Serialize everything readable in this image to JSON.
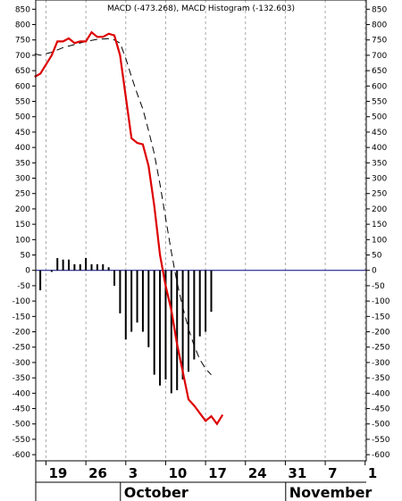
{
  "chart_data": {
    "type": "line",
    "title": "MACD (-473.268), MACD Histogram (-132.603)",
    "ylim": [
      -620,
      880
    ],
    "y_ticks": [
      -600,
      -550,
      -500,
      -450,
      -400,
      -350,
      -300,
      -250,
      -200,
      -150,
      -100,
      -50,
      0,
      50,
      100,
      150,
      200,
      250,
      300,
      350,
      400,
      450,
      500,
      550,
      600,
      650,
      700,
      750,
      800,
      850
    ],
    "x_ticks": [
      {
        "label": "19",
        "day": 19
      },
      {
        "label": "26",
        "day": 26
      },
      {
        "label": "3",
        "day": 33
      },
      {
        "label": "10",
        "day": 40
      },
      {
        "label": "17",
        "day": 47
      },
      {
        "label": "24",
        "day": 54
      },
      {
        "label": "31",
        "day": 61
      },
      {
        "label": "7",
        "day": 68
      },
      {
        "label": "1",
        "day": 75
      }
    ],
    "month_labels": [
      {
        "label": "October",
        "day": 33
      },
      {
        "label": "November",
        "day": 62
      }
    ],
    "xlim": [
      17.2,
      75.2
    ],
    "grid_x": true,
    "zero_line": true,
    "series": [
      {
        "type": "line",
        "color": "#dd0000",
        "points": [
          [
            17,
            630
          ],
          [
            18,
            640
          ],
          [
            20,
            700
          ],
          [
            21,
            745
          ],
          [
            22,
            745
          ],
          [
            23,
            755
          ],
          [
            24,
            740
          ],
          [
            25,
            745
          ],
          [
            26,
            745
          ],
          [
            27,
            775
          ],
          [
            28,
            760
          ],
          [
            29,
            760
          ],
          [
            30,
            770
          ],
          [
            31,
            765
          ],
          [
            32,
            700
          ],
          [
            33,
            565
          ],
          [
            34,
            430
          ],
          [
            35,
            415
          ],
          [
            36,
            410
          ],
          [
            37,
            340
          ],
          [
            38,
            210
          ],
          [
            39,
            50
          ],
          [
            40,
            -50
          ],
          [
            41,
            -130
          ],
          [
            42,
            -240
          ],
          [
            43,
            -330
          ],
          [
            44,
            -420
          ],
          [
            45,
            -440
          ],
          [
            46,
            -465
          ],
          [
            47,
            -490
          ],
          [
            48,
            -475
          ],
          [
            49,
            -500
          ],
          [
            50,
            -470
          ]
        ]
      },
      {
        "type": "line",
        "color": "#000000",
        "dashed": true,
        "points": [
          [
            17,
            705
          ],
          [
            18,
            700
          ],
          [
            20,
            710
          ],
          [
            22,
            725
          ],
          [
            24,
            735
          ],
          [
            26,
            745
          ],
          [
            28,
            752
          ],
          [
            30,
            754
          ],
          [
            31,
            750
          ],
          [
            32,
            740
          ],
          [
            33,
            690
          ],
          [
            34,
            630
          ],
          [
            35,
            575
          ],
          [
            36,
            525
          ],
          [
            37,
            455
          ],
          [
            38,
            380
          ],
          [
            39,
            280
          ],
          [
            40,
            170
          ],
          [
            41,
            60
          ],
          [
            42,
            -40
          ],
          [
            43,
            -120
          ],
          [
            44,
            -190
          ],
          [
            45,
            -245
          ],
          [
            46,
            -290
          ],
          [
            47,
            -320
          ],
          [
            48,
            -340
          ]
        ]
      },
      {
        "type": "bar",
        "color": "#000000",
        "points": [
          [
            18,
            -65
          ],
          [
            20,
            -5
          ],
          [
            21,
            40
          ],
          [
            22,
            35
          ],
          [
            23,
            35
          ],
          [
            24,
            20
          ],
          [
            25,
            20
          ],
          [
            26,
            40
          ],
          [
            27,
            20
          ],
          [
            28,
            20
          ],
          [
            29,
            20
          ],
          [
            30,
            10
          ],
          [
            31,
            -50
          ],
          [
            32,
            -140
          ],
          [
            33,
            -225
          ],
          [
            34,
            -200
          ],
          [
            35,
            -170
          ],
          [
            36,
            -200
          ],
          [
            37,
            -250
          ],
          [
            38,
            -340
          ],
          [
            39,
            -375
          ],
          [
            40,
            -355
          ],
          [
            41,
            -400
          ],
          [
            42,
            -390
          ],
          [
            43,
            -355
          ],
          [
            44,
            -330
          ],
          [
            45,
            -290
          ],
          [
            46,
            -215
          ],
          [
            47,
            -200
          ],
          [
            48,
            -135
          ]
        ]
      }
    ]
  }
}
